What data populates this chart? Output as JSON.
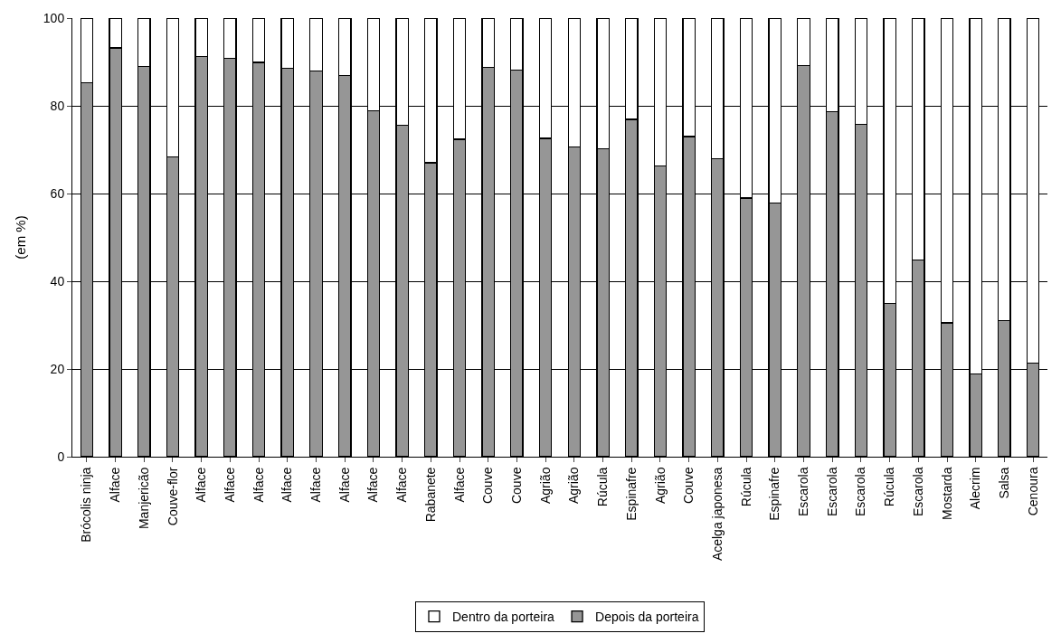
{
  "chart_data": {
    "type": "bar",
    "stacked": true,
    "ylabel": "(em %)",
    "categories": [
      "Brócolis ninja",
      "Alface",
      "Manjericão",
      "Couve-flor",
      "Alface",
      "Alface",
      "Alface",
      "Alface",
      "Alface",
      "Alface",
      "Alface",
      "Alface",
      "Rabanete",
      "Alface",
      "Couve",
      "Couve",
      "Agrião",
      "Agrião",
      "Rúcula",
      "Espinafre",
      "Agrião",
      "Couve",
      "Acelga japonesa",
      "Rúcula",
      "Espinafre",
      "Escarola",
      "Escarola",
      "Escarola",
      "Rúcula",
      "Escarola",
      "Mostarda",
      "Alecrim",
      "Salsa",
      "Cenoura"
    ],
    "series": [
      {
        "name": "Depois da porteira",
        "color": "#969696",
        "values": [
          85.2,
          93.2,
          89.0,
          68.3,
          91.2,
          90.8,
          89.9,
          88.6,
          87.9,
          86.9,
          78.8,
          75.6,
          67.0,
          72.4,
          88.7,
          88.2,
          72.6,
          70.6,
          70.2,
          76.9,
          66.3,
          73.0,
          68.0,
          59.0,
          57.8,
          89.2,
          78.6,
          75.8,
          35.0,
          44.9,
          30.5,
          18.8,
          31.1,
          21.3
        ]
      },
      {
        "name": "Dentro da porteira",
        "color": "#ffffff",
        "values": [
          14.8,
          6.8,
          11.0,
          31.7,
          8.8,
          9.2,
          10.1,
          11.4,
          12.1,
          13.1,
          21.2,
          24.4,
          33.0,
          27.6,
          11.3,
          11.8,
          27.4,
          29.4,
          29.8,
          23.1,
          33.7,
          27.0,
          32.0,
          41.0,
          42.2,
          10.8,
          21.4,
          24.2,
          65.0,
          55.1,
          69.5,
          81.2,
          68.9,
          78.7
        ]
      }
    ],
    "ylim": [
      0,
      100
    ],
    "yticks": [
      0,
      20,
      40,
      60,
      80,
      100
    ],
    "grid": "y",
    "legend": "bottom"
  }
}
